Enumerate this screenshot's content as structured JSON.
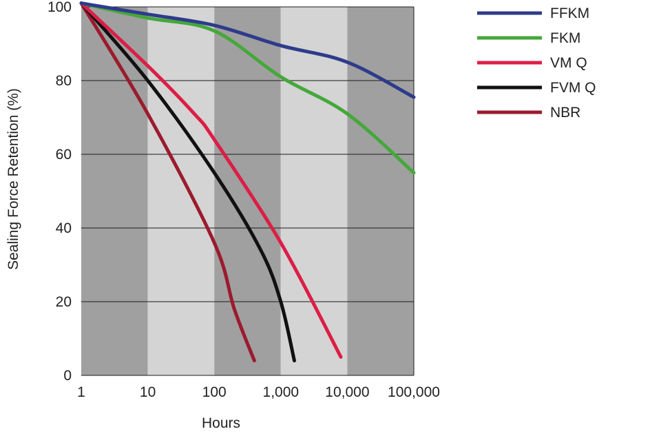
{
  "chart_data": {
    "type": "line",
    "title": "",
    "xlabel": "Hours",
    "ylabel": "Sealing Force Retention (%)",
    "x_scale": "log",
    "xlim": [
      1,
      100000
    ],
    "ylim": [
      0,
      100
    ],
    "x_ticks": [
      {
        "value": 1,
        "label": "1"
      },
      {
        "value": 10,
        "label": "10"
      },
      {
        "value": 100,
        "label": "100"
      },
      {
        "value": 1000,
        "label": "1,000"
      },
      {
        "value": 10000,
        "label": "10,000"
      },
      {
        "value": 100000,
        "label": "100,000"
      }
    ],
    "y_ticks": [
      {
        "value": 0,
        "label": "0"
      },
      {
        "value": 20,
        "label": "20"
      },
      {
        "value": 40,
        "label": "40"
      },
      {
        "value": 60,
        "label": "60"
      },
      {
        "value": 80,
        "label": "80"
      },
      {
        "value": 100,
        "label": "100"
      }
    ],
    "grid": "horizontal",
    "background_bands": [
      "#a0a0a0",
      "#d4d4d4",
      "#a0a0a0",
      "#d4d4d4",
      "#a0a0a0"
    ],
    "legend_position": "right",
    "series": [
      {
        "name": "FFKM",
        "color": "#2e3b8c",
        "x": [
          1,
          10,
          100,
          1000,
          10000,
          100000
        ],
        "y": [
          101,
          98,
          95,
          89.5,
          85,
          75.5
        ]
      },
      {
        "name": "FKM",
        "color": "#44a83a",
        "x": [
          1,
          10,
          100,
          1000,
          10000,
          100000
        ],
        "y": [
          101,
          97,
          93.5,
          81,
          71,
          55
        ]
      },
      {
        "name": "VM Q",
        "color": "#dc1e46",
        "x": [
          1,
          10,
          50,
          100,
          1000,
          8000
        ],
        "y": [
          101,
          84,
          71,
          64,
          36,
          5
        ]
      },
      {
        "name": "FVM Q",
        "color": "#111111",
        "x": [
          1,
          10,
          100,
          500,
          1000,
          1600
        ],
        "y": [
          101,
          80,
          55,
          34,
          20,
          4
        ]
      },
      {
        "name": "NBR",
        "color": "#9b1b2e",
        "x": [
          1,
          10,
          100,
          200,
          400
        ],
        "y": [
          101,
          71,
          36,
          18,
          4
        ]
      }
    ]
  }
}
